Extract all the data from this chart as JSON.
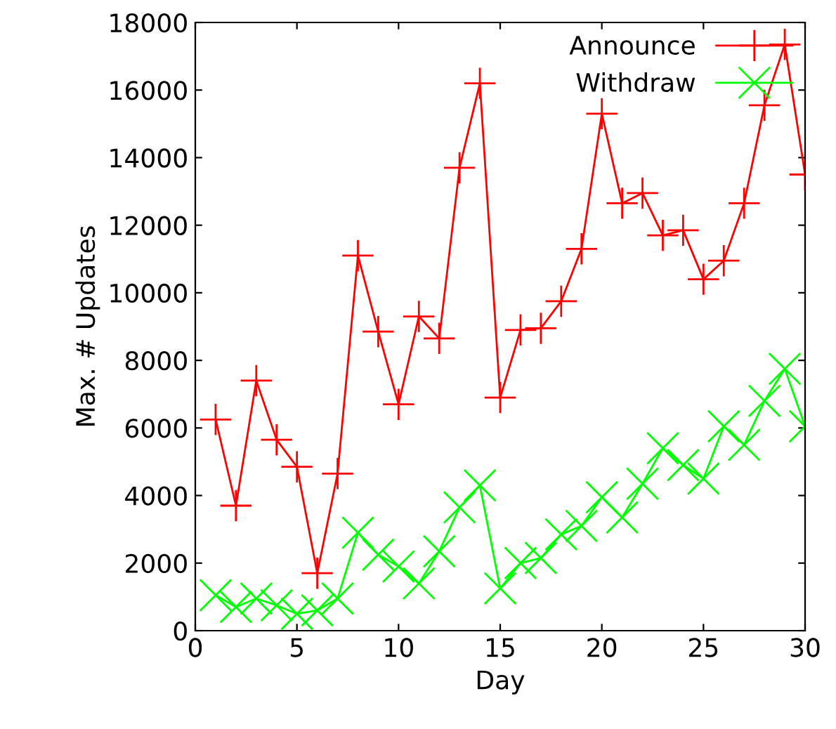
{
  "chart_data": {
    "type": "line",
    "xlabel": "Day",
    "ylabel": "Max. # Updates",
    "x": [
      1,
      2,
      3,
      4,
      5,
      6,
      7,
      8,
      9,
      10,
      11,
      12,
      13,
      14,
      15,
      16,
      17,
      18,
      19,
      20,
      21,
      22,
      23,
      24,
      25,
      26,
      27,
      28,
      29,
      30
    ],
    "series": [
      {
        "name": "Announce",
        "color": "#ff0000",
        "marker": "cross",
        "values": [
          6250,
          3700,
          7400,
          5650,
          4850,
          1700,
          4650,
          11100,
          8850,
          6700,
          9300,
          8650,
          13700,
          16200,
          6900,
          8900,
          8950,
          9750,
          11300,
          15300,
          12650,
          12950,
          11700,
          11850,
          10400,
          10950,
          12650,
          15550,
          17350,
          13500
        ]
      },
      {
        "name": "Withdraw",
        "color": "#00ff00",
        "marker": "cross",
        "values": [
          1050,
          700,
          950,
          750,
          500,
          600,
          950,
          2900,
          2250,
          1900,
          1400,
          2350,
          3650,
          4300,
          1250,
          2000,
          2150,
          2850,
          3100,
          3950,
          3350,
          4350,
          5400,
          4900,
          4500,
          6050,
          5500,
          6800,
          7750,
          6050
        ]
      }
    ],
    "xlim": [
      0,
      30
    ],
    "xticks": [
      0,
      5,
      10,
      15,
      20,
      25,
      30
    ],
    "ylim": [
      0,
      18000
    ],
    "yticks": [
      0,
      2000,
      4000,
      6000,
      8000,
      10000,
      12000,
      14000,
      16000,
      18000
    ],
    "grid": false,
    "legend": "top right",
    "line_style": "solid"
  }
}
